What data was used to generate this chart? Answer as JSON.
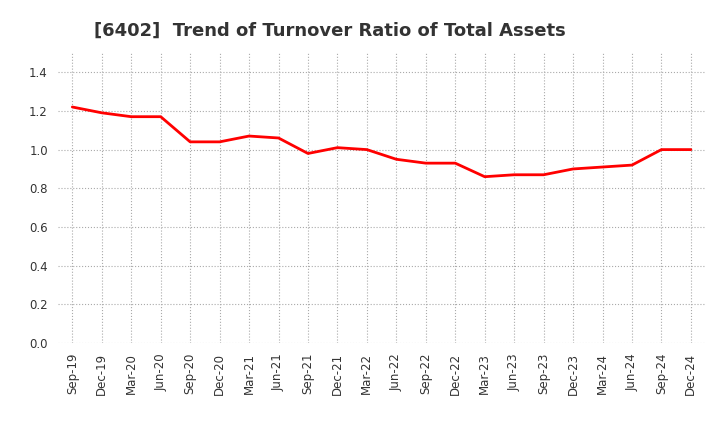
{
  "title": "[6402]  Trend of Turnover Ratio of Total Assets",
  "x_labels": [
    "Sep-19",
    "Dec-19",
    "Mar-20",
    "Jun-20",
    "Sep-20",
    "Dec-20",
    "Mar-21",
    "Jun-21",
    "Sep-21",
    "Dec-21",
    "Mar-22",
    "Jun-22",
    "Sep-22",
    "Dec-22",
    "Mar-23",
    "Jun-23",
    "Sep-23",
    "Dec-23",
    "Mar-24",
    "Jun-24",
    "Sep-24",
    "Dec-24"
  ],
  "y_values": [
    1.22,
    1.19,
    1.17,
    1.17,
    1.04,
    1.04,
    1.07,
    1.06,
    0.98,
    1.01,
    1.0,
    0.95,
    0.93,
    0.93,
    0.86,
    0.87,
    0.87,
    0.9,
    0.91,
    0.92,
    1.0,
    1.0
  ],
  "line_color": "#FF0000",
  "line_width": 2.0,
  "ylim": [
    0.0,
    1.5
  ],
  "yticks": [
    0.0,
    0.2,
    0.4,
    0.6,
    0.8,
    1.0,
    1.2,
    1.4
  ],
  "grid_color": "#AAAAAA",
  "grid_style": "dotted",
  "bg_color": "#FFFFFF",
  "title_fontsize": 13,
  "tick_fontsize": 8.5,
  "title_color": "#333333"
}
